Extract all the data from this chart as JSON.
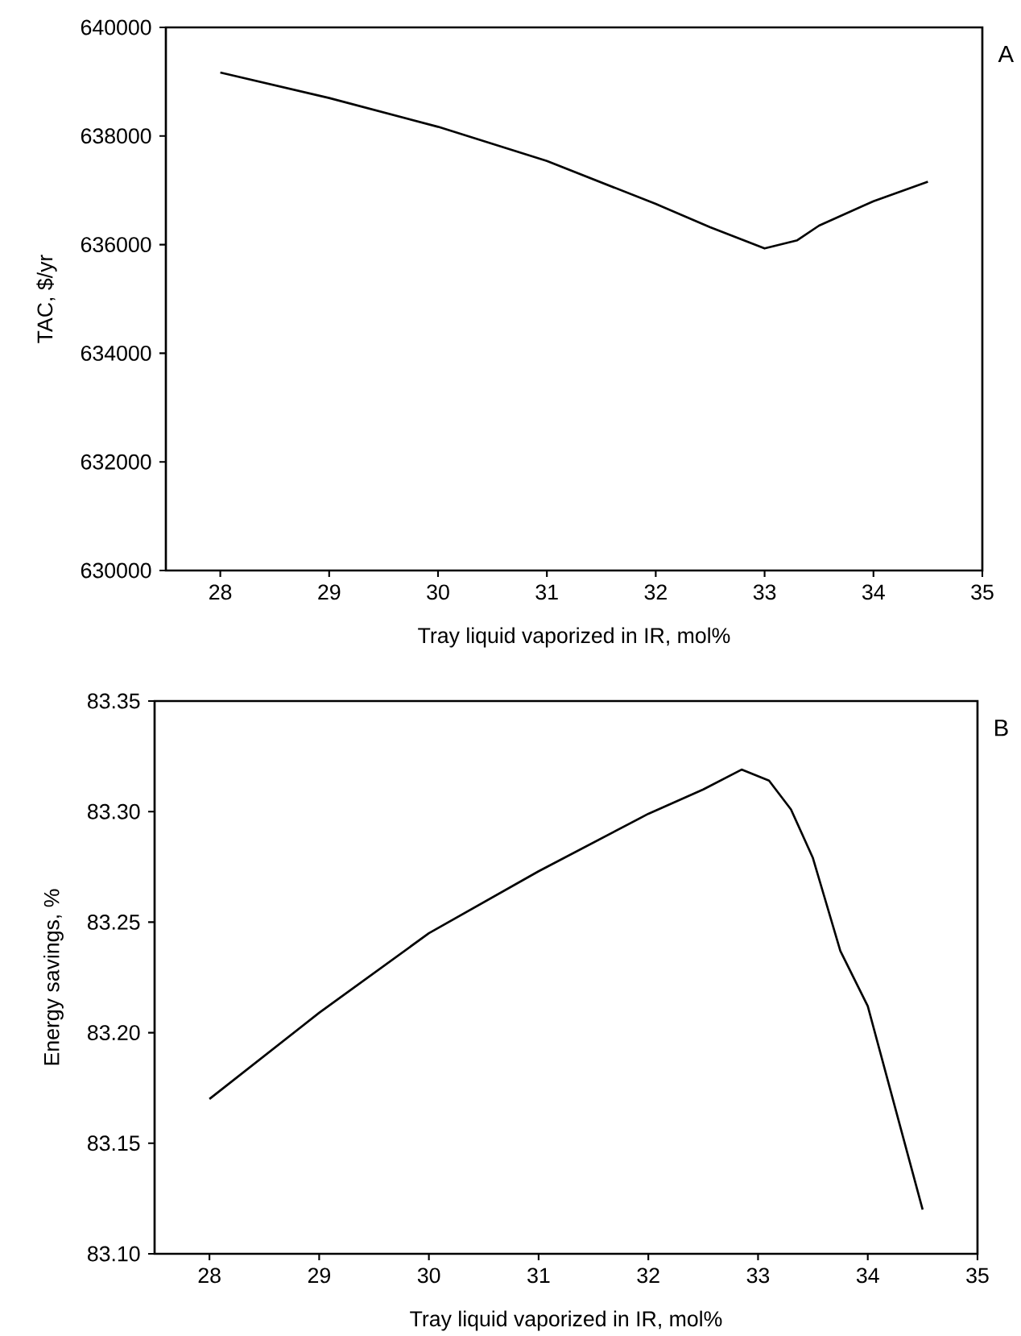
{
  "chart_data": [
    {
      "type": "line",
      "xlabel": "Tray liquid vaporized in IR, mol%",
      "ylabel": "TAC, $/yr",
      "annotations": [
        "A"
      ],
      "x": [
        28,
        29,
        30,
        31,
        32,
        32.5,
        33,
        33.3,
        33.5,
        34,
        34.5
      ],
      "series": [
        {
          "color": "#000000",
          "values": [
            639170,
            638700,
            638170,
            637540,
            636750,
            636320,
            635930,
            636080,
            636350,
            636800,
            637160
          ]
        }
      ],
      "xlim": [
        27.5,
        35
      ],
      "ylim": [
        630000,
        640000
      ],
      "xticks": [
        28,
        29,
        30,
        31,
        32,
        33,
        34,
        35
      ],
      "yticks": [
        630000,
        632000,
        634000,
        636000,
        638000,
        640000
      ]
    },
    {
      "type": "line",
      "xlabel": "Tray liquid vaporized in IR, mol%",
      "ylabel": "Energy savings, %",
      "annotations": [
        "B"
      ],
      "x": [
        28,
        29,
        30,
        31,
        32,
        32.5,
        32.85,
        33.1,
        33.3,
        33.5,
        33.75,
        34,
        34.5
      ],
      "series": [
        {
          "color": "#000000",
          "values": [
            83.17,
            83.209,
            83.245,
            83.273,
            83.299,
            83.31,
            83.319,
            83.314,
            83.301,
            83.279,
            83.237,
            83.212,
            83.12
          ]
        }
      ],
      "xlim": [
        27.5,
        35
      ],
      "ylim": [
        83.1,
        83.35
      ],
      "xticks": [
        28,
        29,
        30,
        31,
        32,
        33,
        34,
        35
      ],
      "yticks": [
        {
          "value": 83.1,
          "label": "83.10"
        },
        {
          "value": 83.15,
          "label": "83.15"
        },
        {
          "value": 83.2,
          "label": "83.20"
        },
        {
          "value": 83.25,
          "label": "83.25"
        },
        {
          "value": 83.3,
          "label": "83.30"
        },
        {
          "value": 83.35,
          "label": "83.35"
        }
      ]
    }
  ]
}
